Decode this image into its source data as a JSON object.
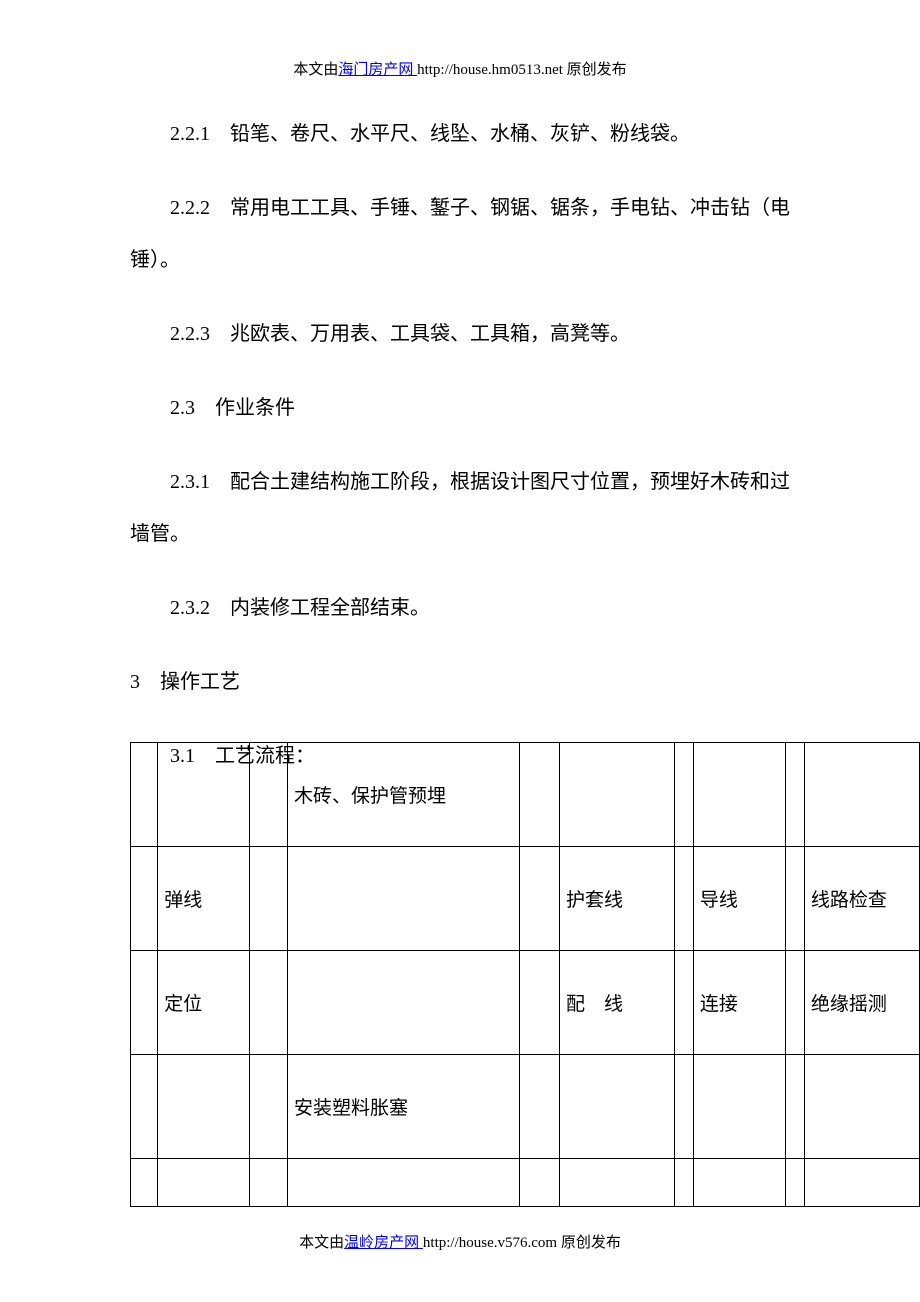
{
  "header": {
    "prefix": "本文由",
    "link_text": "海门房产网 ",
    "url_text": "http://house.hm0513.net  原创发布"
  },
  "footer": {
    "prefix": "本文由",
    "link_text": "温岭房产网 ",
    "url_text": "http://house.v576.com  原创发布"
  },
  "paragraphs": {
    "p1": "2.2.1　铅笔、卷尺、水平尺、线坠、水桶、灰铲、粉线袋。",
    "p2": "2.2.2　常用电工工具、手锤、錾子、钢锯、锯条，手电钻、冲击钻（电锤）。",
    "p3": "2.2.3　兆欧表、万用表、工具袋、工具箱，高凳等。",
    "p4": "2.3　作业条件",
    "p5": "2.3.1　配合土建结构施工阶段，根据设计图尺寸位置，预埋好木砖和过墙管。",
    "p6": "2.3.2　内装修工程全部结束。",
    "p7": "3　操作工艺",
    "p8": "3.1　工艺流程："
  },
  "table": {
    "rows": [
      [
        "",
        "",
        "",
        "木砖、保护管预埋",
        "",
        "",
        "",
        "",
        "",
        ""
      ],
      [
        "",
        "弹线",
        "",
        "",
        "",
        "护套线",
        "",
        "导线",
        "",
        "线路检查"
      ],
      [
        "",
        "定位",
        "",
        "",
        "",
        "配　线",
        "",
        "连接",
        "",
        "绝缘摇测"
      ],
      [
        "",
        "",
        "",
        "安装塑料胀塞",
        "",
        "",
        "",
        "",
        "",
        ""
      ],
      [
        "",
        "",
        "",
        "",
        "",
        "",
        "",
        "",
        "",
        ""
      ]
    ],
    "colors": {
      "text": "#000000",
      "border": "#000000",
      "background": "#ffffff",
      "link": "#0000ee"
    }
  }
}
